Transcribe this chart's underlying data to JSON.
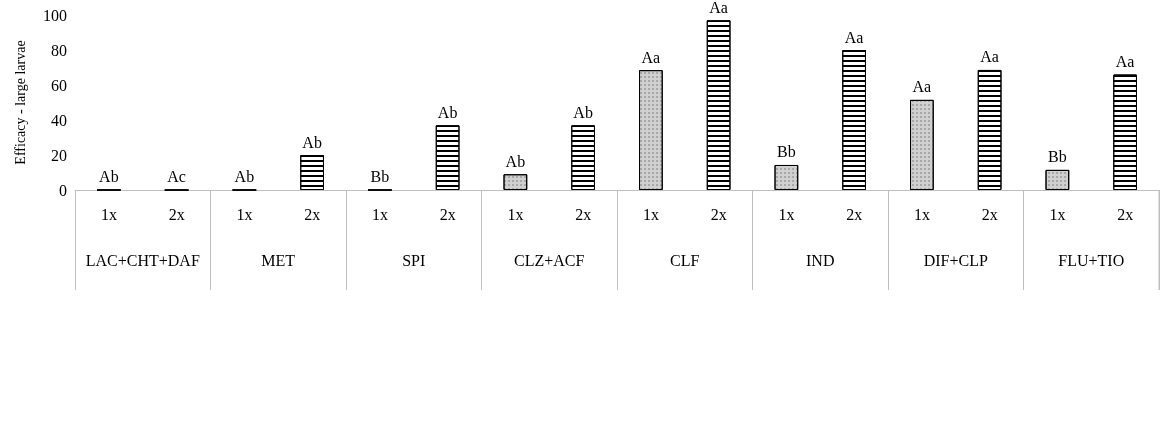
{
  "chart_data": {
    "type": "bar",
    "ylabel": "Efficacy - large larvae",
    "categories": [
      "1x",
      "2x",
      "1x",
      "2x",
      "1x",
      "2x",
      "1x",
      "2x",
      "1x",
      "2x",
      "1x",
      "2x",
      "1x",
      "2x",
      "1x",
      "2x"
    ],
    "values": [
      0,
      0,
      0,
      20,
      0,
      37,
      9,
      37,
      68.5,
      97,
      14.3,
      80,
      51.5,
      68.6,
      11.5,
      66
    ],
    "colors": [
      "#000000",
      "#000000",
      "#000000",
      "#ffffff",
      "#000000",
      "#ffffff",
      "#d0d0d0",
      "#ffffff",
      "#d0d0d0",
      "#ffffff",
      "#d0d0d0",
      "#ffffff",
      "#d0d0d0",
      "#ffffff",
      "#d0d0d0",
      "#ffffff"
    ],
    "value_labels": [
      "Ab",
      "Ac",
      "Ab",
      "Ab",
      "Bb",
      "Ab",
      "Ab",
      "Ab",
      "Aa",
      "Aa",
      "Bb",
      "Aa",
      "Aa",
      "Aa",
      "Bb",
      "Aa"
    ],
    "annotations": [
      "LAC+CHT+DAF",
      "MET",
      "SPI",
      "CLZ+ACF",
      "CLF",
      "IND",
      "DIF+CLP",
      "FLU+TIO"
    ],
    "ylim": [
      0,
      100
    ],
    "yticks": [
      0,
      20,
      40,
      60,
      80,
      100
    ],
    "grid": false
  }
}
